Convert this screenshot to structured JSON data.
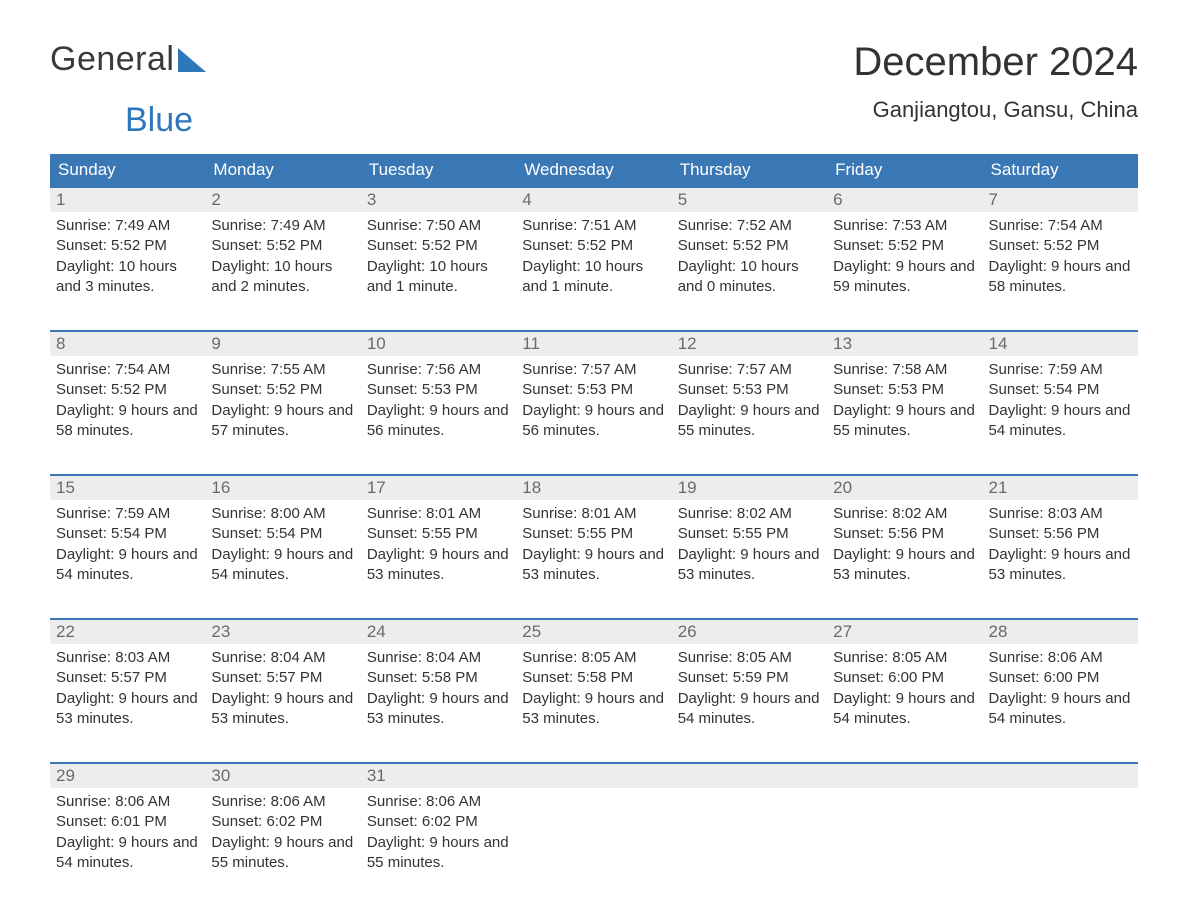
{
  "brand": {
    "general": "General",
    "blue": "Blue"
  },
  "colors": {
    "header_bg": "#3a78b5",
    "header_text": "#ffffff",
    "daynum_bg": "#ededed",
    "daynum_text": "#6b6b6b",
    "body_text": "#333333",
    "accent": "#2e77bb",
    "page_bg": "#ffffff"
  },
  "title": "December 2024",
  "location": "Ganjiangtou, Gansu, China",
  "dayHeaders": [
    "Sunday",
    "Monday",
    "Tuesday",
    "Wednesday",
    "Thursday",
    "Friday",
    "Saturday"
  ],
  "labels": {
    "sunrise": "Sunrise:",
    "sunset": "Sunset:",
    "daylight": "Daylight:"
  },
  "weeks": [
    [
      {
        "n": "1",
        "sunrise": "7:49 AM",
        "sunset": "5:52 PM",
        "daylight": "10 hours and 3 minutes."
      },
      {
        "n": "2",
        "sunrise": "7:49 AM",
        "sunset": "5:52 PM",
        "daylight": "10 hours and 2 minutes."
      },
      {
        "n": "3",
        "sunrise": "7:50 AM",
        "sunset": "5:52 PM",
        "daylight": "10 hours and 1 minute."
      },
      {
        "n": "4",
        "sunrise": "7:51 AM",
        "sunset": "5:52 PM",
        "daylight": "10 hours and 1 minute."
      },
      {
        "n": "5",
        "sunrise": "7:52 AM",
        "sunset": "5:52 PM",
        "daylight": "10 hours and 0 minutes."
      },
      {
        "n": "6",
        "sunrise": "7:53 AM",
        "sunset": "5:52 PM",
        "daylight": "9 hours and 59 minutes."
      },
      {
        "n": "7",
        "sunrise": "7:54 AM",
        "sunset": "5:52 PM",
        "daylight": "9 hours and 58 minutes."
      }
    ],
    [
      {
        "n": "8",
        "sunrise": "7:54 AM",
        "sunset": "5:52 PM",
        "daylight": "9 hours and 58 minutes."
      },
      {
        "n": "9",
        "sunrise": "7:55 AM",
        "sunset": "5:52 PM",
        "daylight": "9 hours and 57 minutes."
      },
      {
        "n": "10",
        "sunrise": "7:56 AM",
        "sunset": "5:53 PM",
        "daylight": "9 hours and 56 minutes."
      },
      {
        "n": "11",
        "sunrise": "7:57 AM",
        "sunset": "5:53 PM",
        "daylight": "9 hours and 56 minutes."
      },
      {
        "n": "12",
        "sunrise": "7:57 AM",
        "sunset": "5:53 PM",
        "daylight": "9 hours and 55 minutes."
      },
      {
        "n": "13",
        "sunrise": "7:58 AM",
        "sunset": "5:53 PM",
        "daylight": "9 hours and 55 minutes."
      },
      {
        "n": "14",
        "sunrise": "7:59 AM",
        "sunset": "5:54 PM",
        "daylight": "9 hours and 54 minutes."
      }
    ],
    [
      {
        "n": "15",
        "sunrise": "7:59 AM",
        "sunset": "5:54 PM",
        "daylight": "9 hours and 54 minutes."
      },
      {
        "n": "16",
        "sunrise": "8:00 AM",
        "sunset": "5:54 PM",
        "daylight": "9 hours and 54 minutes."
      },
      {
        "n": "17",
        "sunrise": "8:01 AM",
        "sunset": "5:55 PM",
        "daylight": "9 hours and 53 minutes."
      },
      {
        "n": "18",
        "sunrise": "8:01 AM",
        "sunset": "5:55 PM",
        "daylight": "9 hours and 53 minutes."
      },
      {
        "n": "19",
        "sunrise": "8:02 AM",
        "sunset": "5:55 PM",
        "daylight": "9 hours and 53 minutes."
      },
      {
        "n": "20",
        "sunrise": "8:02 AM",
        "sunset": "5:56 PM",
        "daylight": "9 hours and 53 minutes."
      },
      {
        "n": "21",
        "sunrise": "8:03 AM",
        "sunset": "5:56 PM",
        "daylight": "9 hours and 53 minutes."
      }
    ],
    [
      {
        "n": "22",
        "sunrise": "8:03 AM",
        "sunset": "5:57 PM",
        "daylight": "9 hours and 53 minutes."
      },
      {
        "n": "23",
        "sunrise": "8:04 AM",
        "sunset": "5:57 PM",
        "daylight": "9 hours and 53 minutes."
      },
      {
        "n": "24",
        "sunrise": "8:04 AM",
        "sunset": "5:58 PM",
        "daylight": "9 hours and 53 minutes."
      },
      {
        "n": "25",
        "sunrise": "8:05 AM",
        "sunset": "5:58 PM",
        "daylight": "9 hours and 53 minutes."
      },
      {
        "n": "26",
        "sunrise": "8:05 AM",
        "sunset": "5:59 PM",
        "daylight": "9 hours and 54 minutes."
      },
      {
        "n": "27",
        "sunrise": "8:05 AM",
        "sunset": "6:00 PM",
        "daylight": "9 hours and 54 minutes."
      },
      {
        "n": "28",
        "sunrise": "8:06 AM",
        "sunset": "6:00 PM",
        "daylight": "9 hours and 54 minutes."
      }
    ],
    [
      {
        "n": "29",
        "sunrise": "8:06 AM",
        "sunset": "6:01 PM",
        "daylight": "9 hours and 54 minutes."
      },
      {
        "n": "30",
        "sunrise": "8:06 AM",
        "sunset": "6:02 PM",
        "daylight": "9 hours and 55 minutes."
      },
      {
        "n": "31",
        "sunrise": "8:06 AM",
        "sunset": "6:02 PM",
        "daylight": "9 hours and 55 minutes."
      },
      null,
      null,
      null,
      null
    ]
  ]
}
